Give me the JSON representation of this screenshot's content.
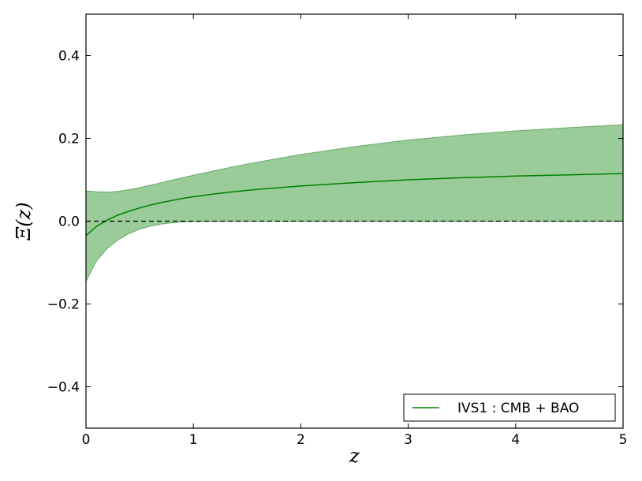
{
  "chart_data": {
    "type": "line",
    "xlabel": "z",
    "ylabel": "Ξ(z)",
    "xlim": [
      0,
      5
    ],
    "ylim": [
      -0.5,
      0.5
    ],
    "x_ticks": [
      0,
      1,
      2,
      3,
      4,
      5
    ],
    "x_tick_labels": [
      "0",
      "1",
      "2",
      "3",
      "4",
      "5"
    ],
    "y_ticks": [
      -0.4,
      -0.2,
      0.0,
      0.2,
      0.4
    ],
    "y_tick_labels": [
      "−0.4",
      "−0.2",
      "0.0",
      "0.2",
      "0.4"
    ],
    "grid": false,
    "legend_position": "bottom-right",
    "reference_line": {
      "y": 0.0,
      "style": "dashed",
      "color": "#000000"
    },
    "series": [
      {
        "name": "IVS1 : CMB + BAO",
        "color": "#008000",
        "band_color": "#99cc99",
        "band_edge_color": "#66aa66",
        "x": [
          0,
          0.1,
          0.2,
          0.3,
          0.4,
          0.5,
          0.6,
          0.7,
          0.8,
          0.9,
          1.0,
          1.2,
          1.4,
          1.6,
          1.8,
          2.0,
          2.5,
          3.0,
          3.5,
          4.0,
          4.5,
          5.0
        ],
        "y": [
          -0.035,
          -0.012,
          0.003,
          0.015,
          0.024,
          0.032,
          0.039,
          0.045,
          0.05,
          0.055,
          0.059,
          0.066,
          0.072,
          0.077,
          0.081,
          0.085,
          0.093,
          0.1,
          0.105,
          0.109,
          0.112,
          0.115
        ],
        "lower": [
          -0.145,
          -0.095,
          -0.065,
          -0.045,
          -0.03,
          -0.019,
          -0.012,
          -0.007,
          -0.004,
          -0.002,
          -0.001,
          0.0,
          0.0,
          0.0,
          0.0,
          0.0,
          0.0,
          0.0,
          0.0,
          0.0,
          0.0,
          0.0
        ],
        "upper": [
          0.073,
          0.071,
          0.07,
          0.072,
          0.076,
          0.081,
          0.087,
          0.093,
          0.099,
          0.105,
          0.111,
          0.122,
          0.133,
          0.143,
          0.152,
          0.161,
          0.18,
          0.196,
          0.208,
          0.218,
          0.226,
          0.233
        ]
      }
    ]
  }
}
